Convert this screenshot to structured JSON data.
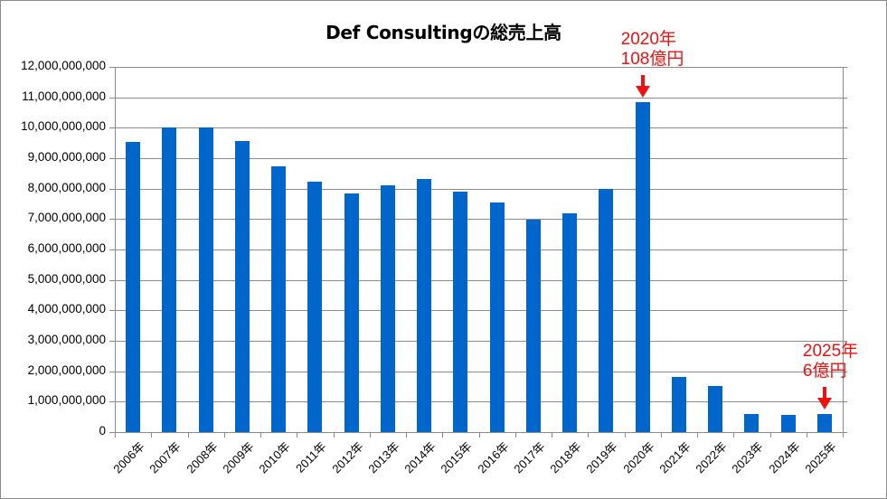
{
  "chart_data": {
    "type": "bar",
    "title": "Def Consultingの総売上高",
    "xlabel": "",
    "ylabel": "",
    "ylim": [
      0,
      12000000000
    ],
    "grid": true,
    "legend": "none",
    "bar_color": "#0066cc",
    "categories": [
      "2006年",
      "2007年",
      "2008年",
      "2009年",
      "2010年",
      "2011年",
      "2012年",
      "2013年",
      "2014年",
      "2015年",
      "2016年",
      "2017年",
      "2018年",
      "2019年",
      "2020年",
      "2021年",
      "2022年",
      "2023年",
      "2024年",
      "2025年"
    ],
    "values": [
      9530000000,
      10000000000,
      10000000000,
      9570000000,
      8740000000,
      8240000000,
      7850000000,
      8120000000,
      8330000000,
      7910000000,
      7530000000,
      6980000000,
      7190000000,
      8000000000,
      10840000000,
      1820000000,
      1520000000,
      600000000,
      550000000,
      600000000
    ],
    "y_ticks": [
      "0",
      "1,000,000,000",
      "2,000,000,000",
      "3,000,000,000",
      "4,000,000,000",
      "5,000,000,000",
      "6,000,000,000",
      "7,000,000,000",
      "8,000,000,000",
      "9,000,000,000",
      "10,000,000,000",
      "11,000,000,000",
      "12,000,000,000"
    ],
    "annotations": [
      {
        "category": "2020年",
        "line1": "2020年",
        "line2": "108億円",
        "color": "#ee1111"
      },
      {
        "category": "2025年",
        "line1": "2025年",
        "line2": "6億円",
        "color": "#ee1111"
      }
    ]
  }
}
